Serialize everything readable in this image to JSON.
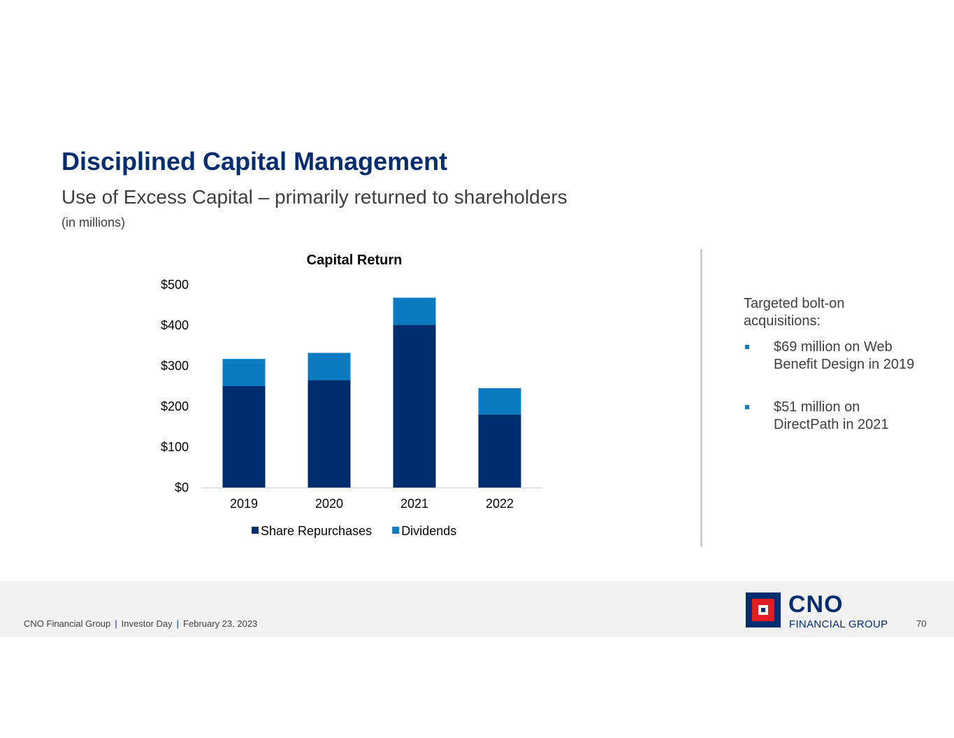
{
  "slide": {
    "title": "Disciplined Capital Management",
    "subtitle": "Use of Excess Capital – primarily returned to shareholders",
    "unit_note": "(in millions)"
  },
  "chart_data": {
    "type": "bar",
    "stacked": true,
    "title": "Capital Return",
    "categories": [
      "2019",
      "2020",
      "2021",
      "2022"
    ],
    "series": [
      {
        "name": "Share Repurchases",
        "color": "#002d6e",
        "values": [
          250,
          265,
          401,
          180
        ]
      },
      {
        "name": "Dividends",
        "color": "#0a7bc1",
        "values": [
          67,
          67,
          67,
          65
        ]
      }
    ],
    "ylim": [
      0,
      500
    ],
    "yticks": [
      0,
      100,
      200,
      300,
      400,
      500
    ],
    "ytick_labels": [
      "$0",
      "$100",
      "$200",
      "$300",
      "$400",
      "$500"
    ],
    "xlabel": "",
    "ylabel": "",
    "grid": false,
    "legend_position": "bottom"
  },
  "side_panel": {
    "heading": "Targeted bolt-on acquisitions:",
    "bullets": [
      {
        "text": "$69 million on Web Benefit Design in 2019"
      },
      {
        "text": "$51 million on DirectPath in 2021"
      }
    ],
    "bullet_color": "#0a7bc1"
  },
  "footer": {
    "company": "CNO Financial Group",
    "event": "Investor Day",
    "date": "February 23, 2023",
    "separator": "|",
    "page_number": "70"
  },
  "logo": {
    "wordmark": "CNO",
    "subtext": "FINANCIAL GROUP"
  }
}
